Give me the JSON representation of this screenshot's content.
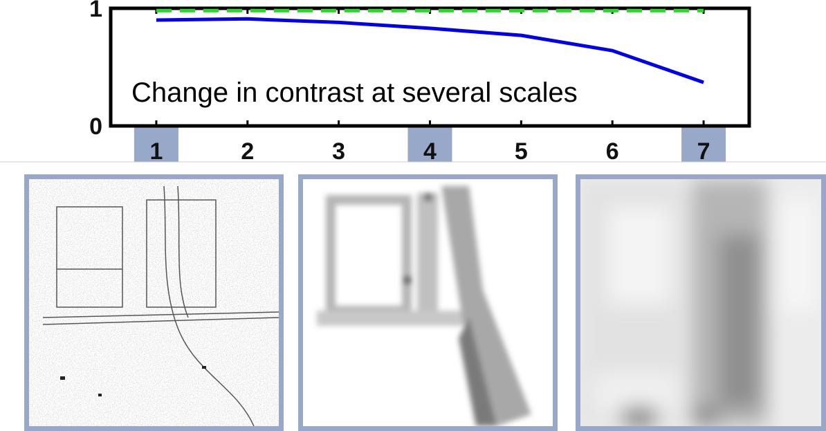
{
  "chart_data": {
    "type": "line",
    "annotation": "Change in contrast at several scales",
    "xlabel": "",
    "ylabel": "",
    "x": [
      1,
      2,
      3,
      4,
      5,
      6,
      7
    ],
    "xlim": [
      0.5,
      7.5
    ],
    "ylim": [
      0,
      1
    ],
    "y_ticks": [
      "0",
      "1"
    ],
    "x_ticks": [
      "1",
      "2",
      "3",
      "4",
      "5",
      "6",
      "7"
    ],
    "highlighted_ticks": [
      1,
      4,
      7
    ],
    "grid": false,
    "legend": "none",
    "series": [
      {
        "values": [
          0.9,
          0.91,
          0.88,
          0.83,
          0.77,
          0.64,
          0.37
        ],
        "color": "#0000ee",
        "style": "solid"
      },
      {
        "values": [
          0.98,
          0.98,
          0.98,
          0.98,
          0.98,
          0.98,
          0.98
        ],
        "color": "#22dd22",
        "style": "dashed"
      }
    ],
    "highlight_color": "#97a8c8"
  },
  "panels": [
    {
      "scale": "1",
      "kind": "fine edge map"
    },
    {
      "scale": "4",
      "kind": "medium blur"
    },
    {
      "scale": "7",
      "kind": "coarse blur"
    }
  ]
}
